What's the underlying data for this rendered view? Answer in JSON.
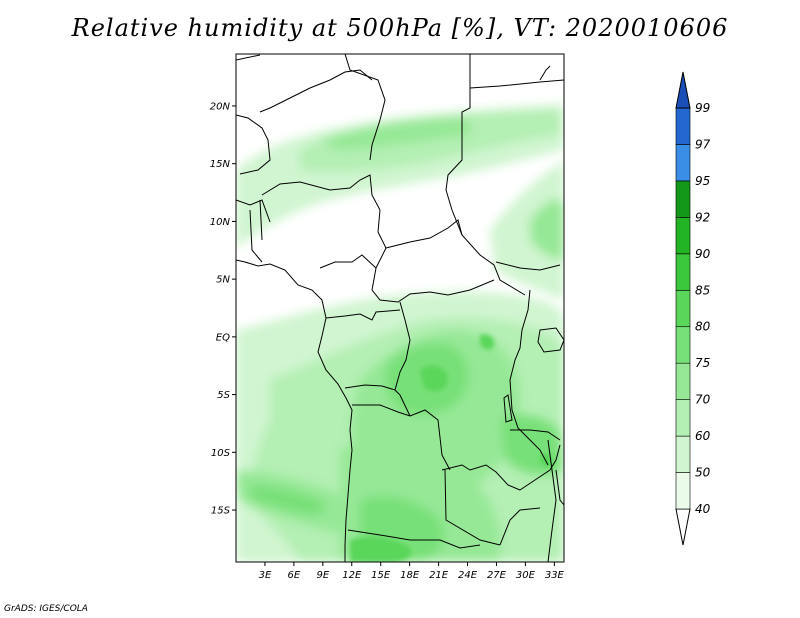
{
  "title": "Relative humidity at 500hPa [%], VT: 2020010606",
  "map": {
    "lat_ticks": [
      "20N",
      "15N",
      "10N",
      "5N",
      "EQ",
      "5S",
      "10S",
      "15S"
    ],
    "lon_ticks": [
      "3E",
      "6E",
      "9E",
      "12E",
      "15E",
      "18E",
      "21E",
      "24E",
      "27E",
      "30E",
      "33E"
    ],
    "extent": {
      "lon_min": 0,
      "lon_max": 34,
      "lat_min": -19.5,
      "lat_max": 24.5
    }
  },
  "colorbar": {
    "levels": [
      40,
      50,
      60,
      70,
      75,
      80,
      85,
      90,
      92,
      95,
      97,
      99
    ],
    "labels": [
      "40",
      "50",
      "60",
      "70",
      "75",
      "80",
      "85",
      "90",
      "92",
      "95",
      "97",
      "99"
    ],
    "colors": [
      "#ffffff",
      "#eafbea",
      "#d0f5d0",
      "#b4efb4",
      "#96e896",
      "#78e078",
      "#5ad65a",
      "#3cc83c",
      "#23b423",
      "#13981a",
      "#3a8ee6",
      "#2268d0",
      "#1a4fb8"
    ]
  },
  "credit": "GrADS: IGES/COLA"
}
